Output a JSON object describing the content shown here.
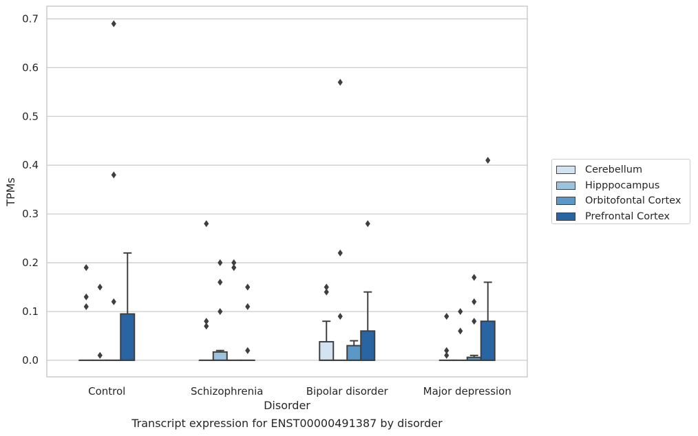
{
  "chart_data": {
    "type": "box",
    "title": "",
    "caption": "Transcript expression for ENST00000491387 by disorder",
    "xlabel": "Disorder",
    "ylabel": "TPMs",
    "ylim": [
      -0.034,
      0.726
    ],
    "yticks": [
      "0.0",
      "0.1",
      "0.2",
      "0.3",
      "0.4",
      "0.5",
      "0.6",
      "0.7"
    ],
    "grid": "horizontal",
    "legend_position": "right",
    "categories": [
      "Control",
      "Schizophrenia",
      "Bipolar disorder",
      "Major depression"
    ],
    "series": [
      {
        "name": "Cerebellum",
        "color": "#d3e3f2",
        "boxes": [
          {
            "q1": 0,
            "median": 0,
            "q3": 0,
            "whisker_low": 0,
            "whisker_high": 0,
            "outliers": [
              0.19,
              0.13,
              0.11
            ]
          },
          {
            "q1": 0,
            "median": 0,
            "q3": 0,
            "whisker_low": 0,
            "whisker_high": 0,
            "outliers": [
              0.28,
              0.08,
              0.07
            ]
          },
          {
            "q1": 0,
            "median": 0,
            "q3": 0.038,
            "whisker_low": 0,
            "whisker_high": 0.08,
            "outliers": [
              0.15,
              0.14
            ]
          },
          {
            "q1": 0,
            "median": 0,
            "q3": 0,
            "whisker_low": 0,
            "whisker_high": 0,
            "outliers": [
              0.09,
              0.02,
              0.01
            ]
          }
        ]
      },
      {
        "name": "Hipppocampus",
        "color": "#9cc3dd",
        "boxes": [
          {
            "q1": 0,
            "median": 0,
            "q3": 0,
            "whisker_low": 0,
            "whisker_high": 0,
            "outliers": [
              0.15,
              0.01
            ]
          },
          {
            "q1": 0,
            "median": 0,
            "q3": 0.017,
            "whisker_low": 0,
            "whisker_high": 0.02,
            "outliers": [
              0.2,
              0.16,
              0.1
            ]
          },
          {
            "q1": 0,
            "median": 0,
            "q3": 0,
            "whisker_low": 0,
            "whisker_high": 0,
            "outliers": [
              0.57,
              0.22,
              0.09
            ]
          },
          {
            "q1": 0,
            "median": 0,
            "q3": 0,
            "whisker_low": 0,
            "whisker_high": 0,
            "outliers": [
              0.1,
              0.06
            ]
          }
        ]
      },
      {
        "name": "Orbitofontal Cortex",
        "color": "#5b98c5",
        "boxes": [
          {
            "q1": 0,
            "median": 0,
            "q3": 0,
            "whisker_low": 0,
            "whisker_high": 0,
            "outliers": [
              0.69,
              0.38,
              0.12
            ]
          },
          {
            "q1": 0,
            "median": 0,
            "q3": 0,
            "whisker_low": 0,
            "whisker_high": 0,
            "outliers": [
              0.2,
              0.19
            ]
          },
          {
            "q1": 0,
            "median": 0,
            "q3": 0.03,
            "whisker_low": 0,
            "whisker_high": 0.04,
            "outliers": []
          },
          {
            "q1": 0,
            "median": 0,
            "q3": 0.006,
            "whisker_low": 0,
            "whisker_high": 0.01,
            "outliers": [
              0.17,
              0.12,
              0.08
            ]
          }
        ]
      },
      {
        "name": "Prefrontal Cortex",
        "color": "#2a65a3",
        "boxes": [
          {
            "q1": 0,
            "median": 0,
            "q3": 0.095,
            "whisker_low": 0,
            "whisker_high": 0.22,
            "outliers": []
          },
          {
            "q1": 0,
            "median": 0,
            "q3": 0,
            "whisker_low": 0,
            "whisker_high": 0,
            "outliers": [
              0.15,
              0.11,
              0.02
            ]
          },
          {
            "q1": 0,
            "median": 0,
            "q3": 0.06,
            "whisker_low": 0,
            "whisker_high": 0.14,
            "outliers": [
              0.28
            ]
          },
          {
            "q1": 0,
            "median": 0,
            "q3": 0.08,
            "whisker_low": 0,
            "whisker_high": 0.16,
            "outliers": [
              0.41
            ]
          }
        ]
      }
    ]
  }
}
